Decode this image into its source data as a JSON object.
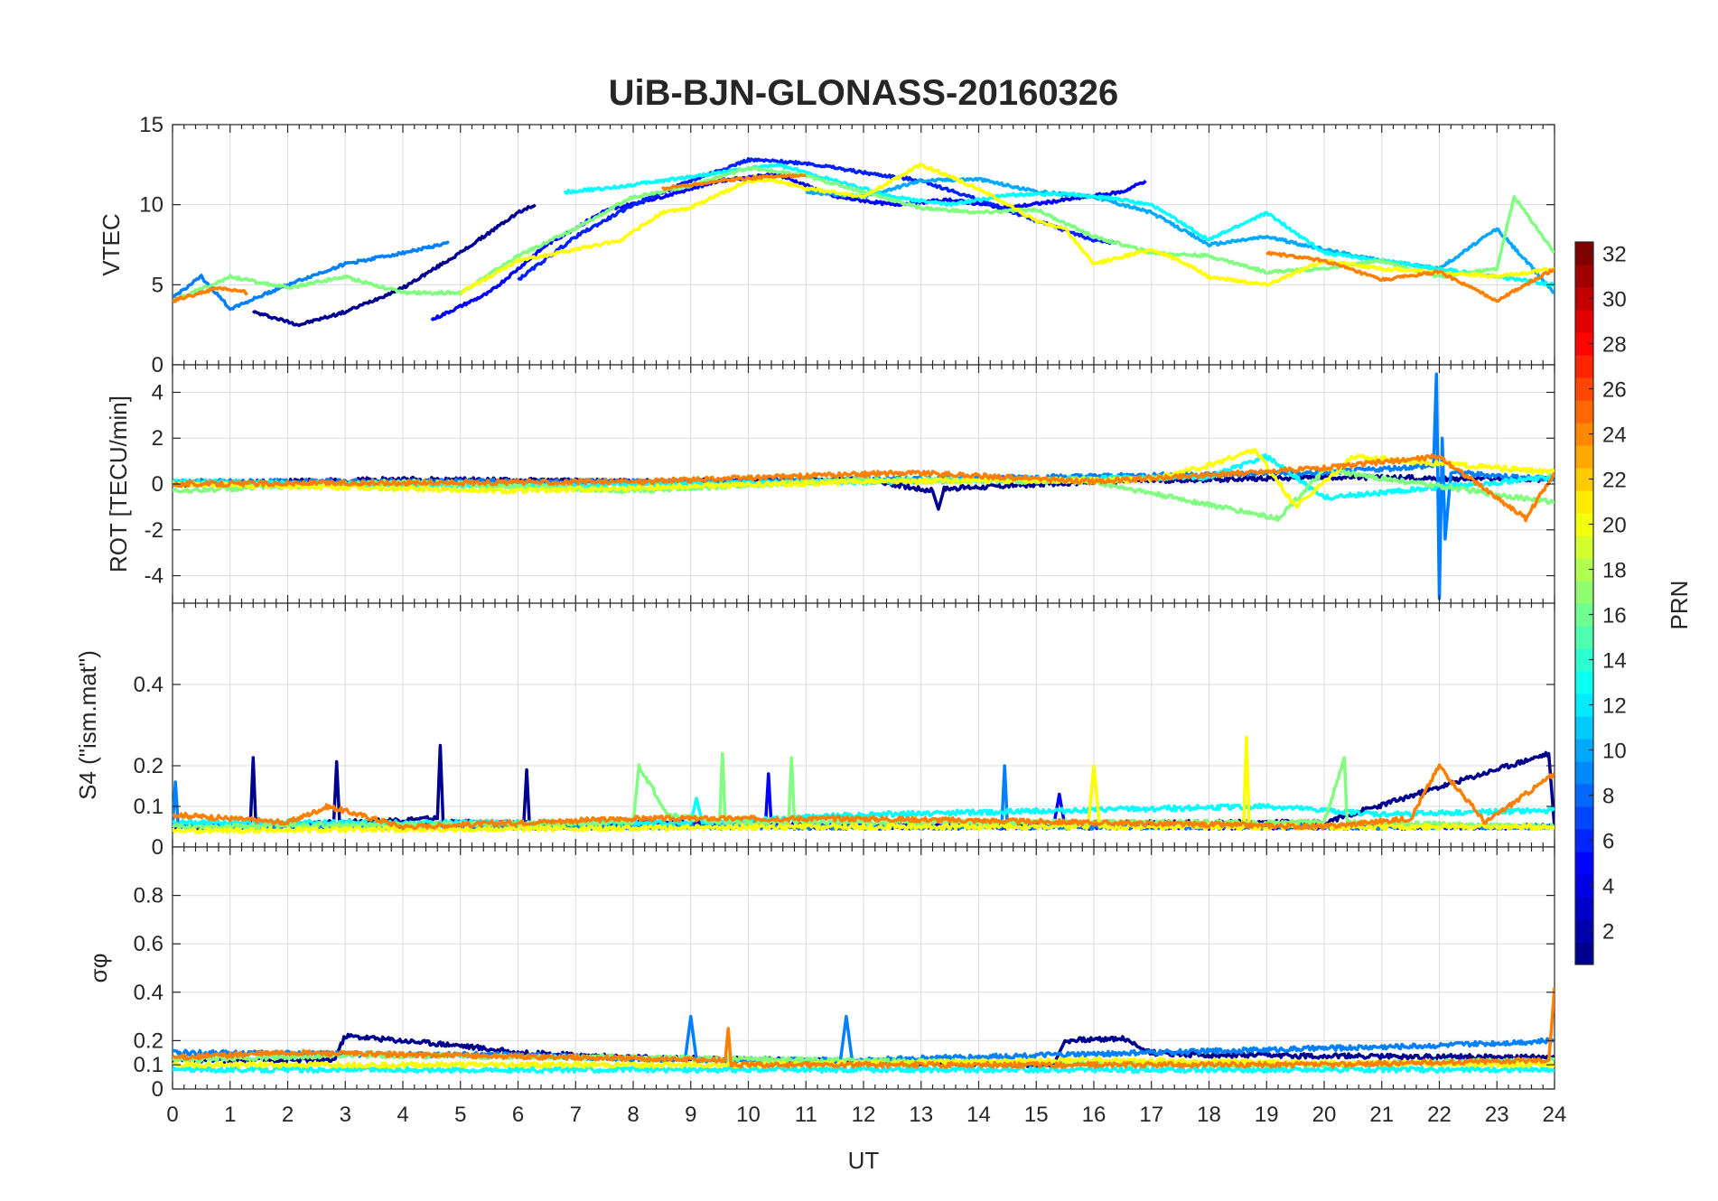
{
  "figure": {
    "title": "UiB-BJN-GLONASS-20160326",
    "xlabel": "UT",
    "x_ticks": [
      "0",
      "1",
      "2",
      "3",
      "4",
      "5",
      "6",
      "7",
      "8",
      "9",
      "10",
      "11",
      "12",
      "13",
      "14",
      "15",
      "16",
      "17",
      "18",
      "19",
      "20",
      "21",
      "22",
      "23",
      "24"
    ],
    "colorbar": {
      "label": "PRN",
      "colormap": "jet",
      "range": [
        1,
        32
      ],
      "ticks": [
        "2",
        "4",
        "6",
        "8",
        "10",
        "12",
        "14",
        "16",
        "18",
        "20",
        "22",
        "24",
        "26",
        "28",
        "30",
        "32"
      ],
      "colors": [
        "#00008f",
        "#0000ff",
        "#0080ff",
        "#00ffff",
        "#80ff80",
        "#ffff00",
        "#ff8000",
        "#ff0000",
        "#800000"
      ]
    }
  },
  "chart_data": [
    {
      "type": "line",
      "panel": "vtec",
      "ylabel": "VTEC",
      "xlim": [
        0,
        24
      ],
      "ylim": [
        0,
        15
      ],
      "y_ticks": [
        "0",
        "5",
        "10",
        "15"
      ],
      "series": [
        {
          "color": "#00008f",
          "x": [
            1.4,
            2.2,
            3.0,
            4.0,
            5.0,
            6.0,
            6.3
          ],
          "values": [
            3.3,
            2.5,
            3.3,
            4.8,
            7.0,
            9.5,
            10.0
          ]
        },
        {
          "color": "#0000ff",
          "x": [
            4.5,
            5.5,
            6.5,
            7.5,
            8.5,
            9.5,
            10.5,
            11.5,
            12.5,
            13.5,
            14.5,
            15.5,
            16.5,
            16.9
          ],
          "values": [
            2.8,
            4.5,
            7.5,
            9.6,
            10.5,
            11.5,
            11.9,
            10.5,
            10.0,
            10.3,
            9.8,
            10.3,
            10.8,
            11.5
          ]
        },
        {
          "color": "#0020ff",
          "x": [
            6.0,
            7.0,
            8.0,
            9.0,
            10.0,
            11.0,
            12.0,
            13.0,
            14.0,
            15.0,
            16.0,
            16.4
          ],
          "values": [
            5.3,
            8.0,
            10.0,
            11.5,
            12.8,
            12.6,
            12.0,
            11.5,
            10.3,
            9.0,
            7.8,
            7.6
          ]
        },
        {
          "color": "#0080ff",
          "x": [
            0.0,
            0.5,
            1.0,
            2.0,
            3.0,
            4.0,
            4.8
          ],
          "values": [
            4.2,
            5.5,
            3.5,
            5.0,
            6.3,
            7.0,
            7.6
          ]
        },
        {
          "color": "#00a8ff",
          "x": [
            11.0,
            12.0,
            13.0,
            14.0,
            15.0,
            16.0,
            17.0,
            18.0,
            19.0,
            20.0,
            21.0,
            22.0,
            23.0,
            24.0
          ],
          "values": [
            10.8,
            10.5,
            11.5,
            11.6,
            10.8,
            10.5,
            9.5,
            7.5,
            8.0,
            7.2,
            6.5,
            6.0,
            8.5,
            4.5
          ]
        },
        {
          "color": "#00ffff",
          "x": [
            6.8,
            7.5,
            8.5,
            9.5,
            10.5,
            11.5,
            12.5,
            13.5,
            14.5,
            15.5,
            16.5,
            17.0,
            18.0,
            19.0,
            20.0,
            21.0,
            22.0,
            23.0,
            24.0
          ],
          "values": [
            10.8,
            11.0,
            11.5,
            12.0,
            12.5,
            11.5,
            10.5,
            10.0,
            10.6,
            10.7,
            10.3,
            10.0,
            7.8,
            9.5,
            7.0,
            6.5,
            6.0,
            5.5,
            5.0
          ]
        },
        {
          "color": "#80ff80",
          "x": [
            0.0,
            1.0,
            2.0,
            3.0,
            4.0,
            5.0,
            6.0,
            7.0,
            8.0,
            9.0,
            10.0,
            11.0,
            12.0,
            13.0,
            14.0,
            15.0,
            16.0,
            17.0,
            18.0,
            19.0,
            20.0,
            21.0,
            22.0,
            23.0,
            23.3,
            24.0
          ],
          "values": [
            4.0,
            5.5,
            4.8,
            5.5,
            4.5,
            4.5,
            6.8,
            8.5,
            10.5,
            11.2,
            12.3,
            11.8,
            10.8,
            9.8,
            9.5,
            9.7,
            8.0,
            7.0,
            6.8,
            5.8,
            6.0,
            6.5,
            5.5,
            6.0,
            10.5,
            7.0
          ]
        },
        {
          "color": "#ffff00",
          "x": [
            5.0,
            6.0,
            7.0,
            7.8,
            8.5,
            9.0,
            10.0,
            10.5,
            11.0,
            12.0,
            13.0,
            14.0,
            15.0,
            15.5,
            16.0,
            17.0,
            17.5,
            18.0,
            19.0,
            20.0,
            21.0,
            22.0,
            23.0,
            24.0
          ],
          "values": [
            4.5,
            6.5,
            7.2,
            7.8,
            9.5,
            9.8,
            11.5,
            11.5,
            11.0,
            10.5,
            12.5,
            11.0,
            9.0,
            8.5,
            6.3,
            7.2,
            6.5,
            5.5,
            5.0,
            6.5,
            6.0,
            5.8,
            5.5,
            6.0
          ]
        },
        {
          "color": "#ff8000",
          "x": [
            0.0,
            0.8,
            1.3,
            7.5,
            8.5,
            9.5,
            10.5,
            11.0,
            18.0,
            19.0,
            20.0,
            21.0,
            22.0,
            23.0,
            24.0
          ],
          "values": [
            4.0,
            4.8,
            4.5,
            null,
            11.0,
            11.5,
            11.8,
            11.8,
            null,
            7.0,
            6.5,
            5.3,
            5.8,
            4.0,
            6.0
          ]
        }
      ]
    },
    {
      "type": "line",
      "panel": "rot",
      "ylabel": "ROT [TECU/min]",
      "xlim": [
        0,
        24
      ],
      "ylim": [
        -5.2,
        5.2
      ],
      "y_ticks": [
        "-4",
        "-2",
        "0",
        "2",
        "4"
      ],
      "series": [
        {
          "color": "#00008f",
          "x": [
            0,
            4,
            8,
            12,
            13.2,
            13.3,
            13.4,
            16,
            20,
            24
          ],
          "values": [
            0,
            0.2,
            0.1,
            0.2,
            -0.3,
            -1.1,
            -0.2,
            0.1,
            0.3,
            0.2
          ]
        },
        {
          "color": "#0080ff",
          "x": [
            0,
            10,
            20,
            21.9,
            21.95,
            22.0,
            22.05,
            22.1,
            22.2,
            24
          ],
          "values": [
            0.1,
            0.1,
            0.5,
            0.8,
            4.8,
            -5.0,
            2.0,
            -2.4,
            0.5,
            0.2
          ]
        },
        {
          "color": "#00ffff",
          "x": [
            0,
            6,
            12,
            18,
            19,
            20,
            24
          ],
          "values": [
            0.1,
            -0.1,
            0.1,
            0.3,
            1.2,
            -0.6,
            0.3
          ]
        },
        {
          "color": "#80ff80",
          "x": [
            0,
            4,
            8,
            12,
            16,
            19.2,
            20,
            24
          ],
          "values": [
            -0.3,
            0.1,
            -0.3,
            0.2,
            0.1,
            -1.5,
            0.6,
            -0.8
          ]
        },
        {
          "color": "#ffff00",
          "x": [
            0,
            6,
            12,
            17,
            18,
            18.8,
            19.5,
            20.5,
            24
          ],
          "values": [
            0,
            -0.3,
            0.1,
            0.2,
            0.8,
            1.5,
            -1.0,
            1.2,
            0.5
          ]
        },
        {
          "color": "#ff8000",
          "x": [
            0,
            8,
            12.8,
            16,
            20,
            22,
            23.5,
            24
          ],
          "values": [
            0,
            0.1,
            0.5,
            0.1,
            0.7,
            1.2,
            -1.5,
            0.5
          ]
        }
      ]
    },
    {
      "type": "line",
      "panel": "s4",
      "ylabel": "S4 (\"ism.mat\")",
      "xlim": [
        0,
        24
      ],
      "ylim": [
        0,
        0.6
      ],
      "y_ticks": [
        "0",
        "0.1",
        "0.2",
        "0.4"
      ],
      "series": [
        {
          "color": "#00008f",
          "x": [
            0,
            1.35,
            1.4,
            1.45,
            2.8,
            2.85,
            2.9,
            4.6,
            4.65,
            4.7,
            6.1,
            6.15,
            6.2,
            8,
            12,
            16,
            20,
            23.9,
            24
          ],
          "values": [
            0.05,
            0.05,
            0.22,
            0.05,
            0.06,
            0.21,
            0.06,
            0.07,
            0.25,
            0.06,
            0.06,
            0.19,
            0.05,
            0.06,
            0.05,
            0.06,
            0.06,
            0.23,
            0.05
          ]
        },
        {
          "color": "#0000ff",
          "x": [
            0,
            8,
            10.3,
            10.35,
            10.4,
            15.3,
            15.4,
            15.5,
            24
          ],
          "values": [
            0.05,
            0.06,
            0.06,
            0.18,
            0.05,
            0.05,
            0.13,
            0.05,
            0.05
          ]
        },
        {
          "color": "#0080ff",
          "x": [
            0,
            0.05,
            0.1,
            14.4,
            14.45,
            14.5,
            24
          ],
          "values": [
            0.05,
            0.16,
            0.05,
            0.05,
            0.2,
            0.05,
            0.05
          ]
        },
        {
          "color": "#00ffff",
          "x": [
            0,
            9,
            9.1,
            9.2,
            12,
            19,
            21,
            24
          ],
          "values": [
            0.06,
            0.06,
            0.12,
            0.06,
            0.08,
            0.1,
            0.08,
            0.09
          ]
        },
        {
          "color": "#80ff80",
          "x": [
            0,
            8,
            8.1,
            8.6,
            9.5,
            9.55,
            9.6,
            10.7,
            10.75,
            10.8,
            20,
            20.35,
            20.4,
            24
          ],
          "values": [
            0.05,
            0.06,
            0.2,
            0.08,
            0.06,
            0.23,
            0.06,
            0.06,
            0.22,
            0.06,
            0.06,
            0.22,
            0.06,
            0.05
          ]
        },
        {
          "color": "#ffff00",
          "x": [
            0,
            12,
            15.9,
            16.0,
            16.1,
            18.6,
            18.65,
            18.7,
            24
          ],
          "values": [
            0.04,
            0.05,
            0.05,
            0.2,
            0.05,
            0.05,
            0.27,
            0.05,
            0.05
          ]
        },
        {
          "color": "#ff8000",
          "x": [
            0,
            2,
            2.7,
            4,
            8,
            12,
            16,
            20,
            21.5,
            22,
            22.8,
            24
          ],
          "values": [
            0.08,
            0.06,
            0.1,
            0.05,
            0.07,
            0.07,
            0.06,
            0.05,
            0.07,
            0.2,
            0.06,
            0.18
          ]
        }
      ]
    },
    {
      "type": "line",
      "panel": "sigma_phi",
      "ylabel": "σφ",
      "xlim": [
        0,
        24
      ],
      "ylim": [
        0,
        1
      ],
      "y_ticks": [
        "0",
        "0.1",
        "0.2",
        "0.4",
        "0.6",
        "0.8"
      ],
      "series": [
        {
          "color": "#00008f",
          "x": [
            0,
            2.8,
            3.0,
            4.0,
            5.0,
            6.0,
            8.0,
            15.3,
            15.5,
            16.5,
            17.0,
            18.0,
            24
          ],
          "values": [
            0.12,
            0.12,
            0.22,
            0.2,
            0.18,
            0.15,
            0.13,
            0.1,
            0.2,
            0.21,
            0.15,
            0.14,
            0.13
          ]
        },
        {
          "color": "#0080ff",
          "x": [
            0,
            6,
            8.9,
            9.0,
            9.1,
            11.6,
            11.7,
            11.8,
            22,
            24
          ],
          "values": [
            0.15,
            0.14,
            0.12,
            0.3,
            0.12,
            0.12,
            0.3,
            0.12,
            0.18,
            0.2
          ]
        },
        {
          "color": "#00ffff",
          "x": [
            0,
            12,
            24
          ],
          "values": [
            0.08,
            0.08,
            0.08
          ]
        },
        {
          "color": "#80ff80",
          "x": [
            0,
            3,
            8,
            14,
            20,
            24
          ],
          "values": [
            0.12,
            0.14,
            0.13,
            0.11,
            0.1,
            0.12
          ]
        },
        {
          "color": "#ffff00",
          "x": [
            0,
            10,
            16,
            19,
            24
          ],
          "values": [
            0.1,
            0.1,
            0.12,
            0.11,
            0.1
          ]
        },
        {
          "color": "#ff8000",
          "x": [
            0,
            2,
            9.6,
            9.65,
            9.7,
            14,
            20,
            23.9,
            23.95,
            24
          ],
          "values": [
            0.13,
            0.15,
            0.12,
            0.25,
            0.1,
            0.1,
            0.1,
            0.12,
            0.26,
            0.42
          ]
        }
      ]
    }
  ]
}
